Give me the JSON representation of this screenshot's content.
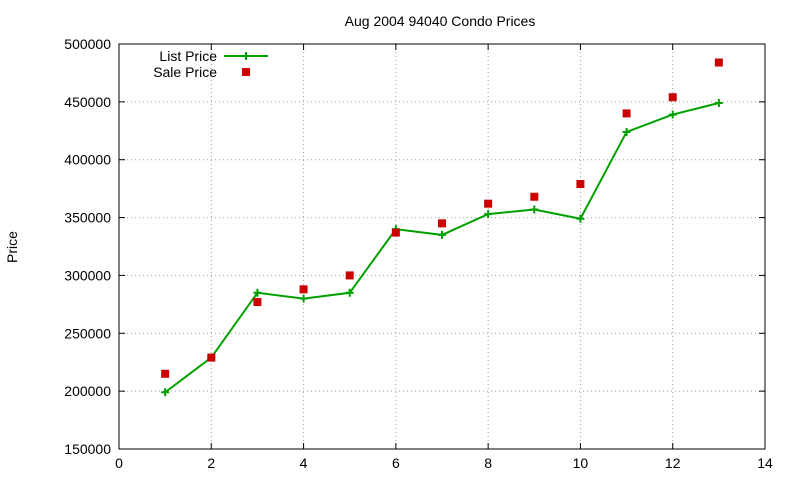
{
  "chart_data": {
    "type": "line",
    "title": "Aug 2004 94040 Condo Prices",
    "xlabel": "",
    "ylabel": "Price",
    "xlim": [
      0,
      14
    ],
    "ylim": [
      150000,
      500000
    ],
    "xticks": [
      0,
      2,
      4,
      6,
      8,
      10,
      12,
      14
    ],
    "yticks": [
      150000,
      200000,
      250000,
      300000,
      350000,
      400000,
      450000,
      500000
    ],
    "grid": true,
    "legend_position": "top-left",
    "series": [
      {
        "name": "List Price",
        "style": "linespoints",
        "marker": "plus",
        "color": "#00a000",
        "x": [
          1,
          2,
          3,
          4,
          5,
          6,
          7,
          8,
          9,
          10,
          11,
          12,
          13
        ],
        "values": [
          199000,
          229000,
          285000,
          280000,
          285000,
          340000,
          335000,
          353000,
          357000,
          349000,
          424000,
          439000,
          449000
        ]
      },
      {
        "name": "Sale Price",
        "style": "points",
        "marker": "square",
        "color": "#cc0000",
        "x": [
          1,
          2,
          3,
          4,
          5,
          6,
          7,
          8,
          9,
          10,
          11,
          12,
          13
        ],
        "values": [
          215000,
          229000,
          277000,
          288000,
          300000,
          337000,
          345000,
          362000,
          368000,
          379000,
          440000,
          454000,
          484000
        ]
      }
    ]
  }
}
